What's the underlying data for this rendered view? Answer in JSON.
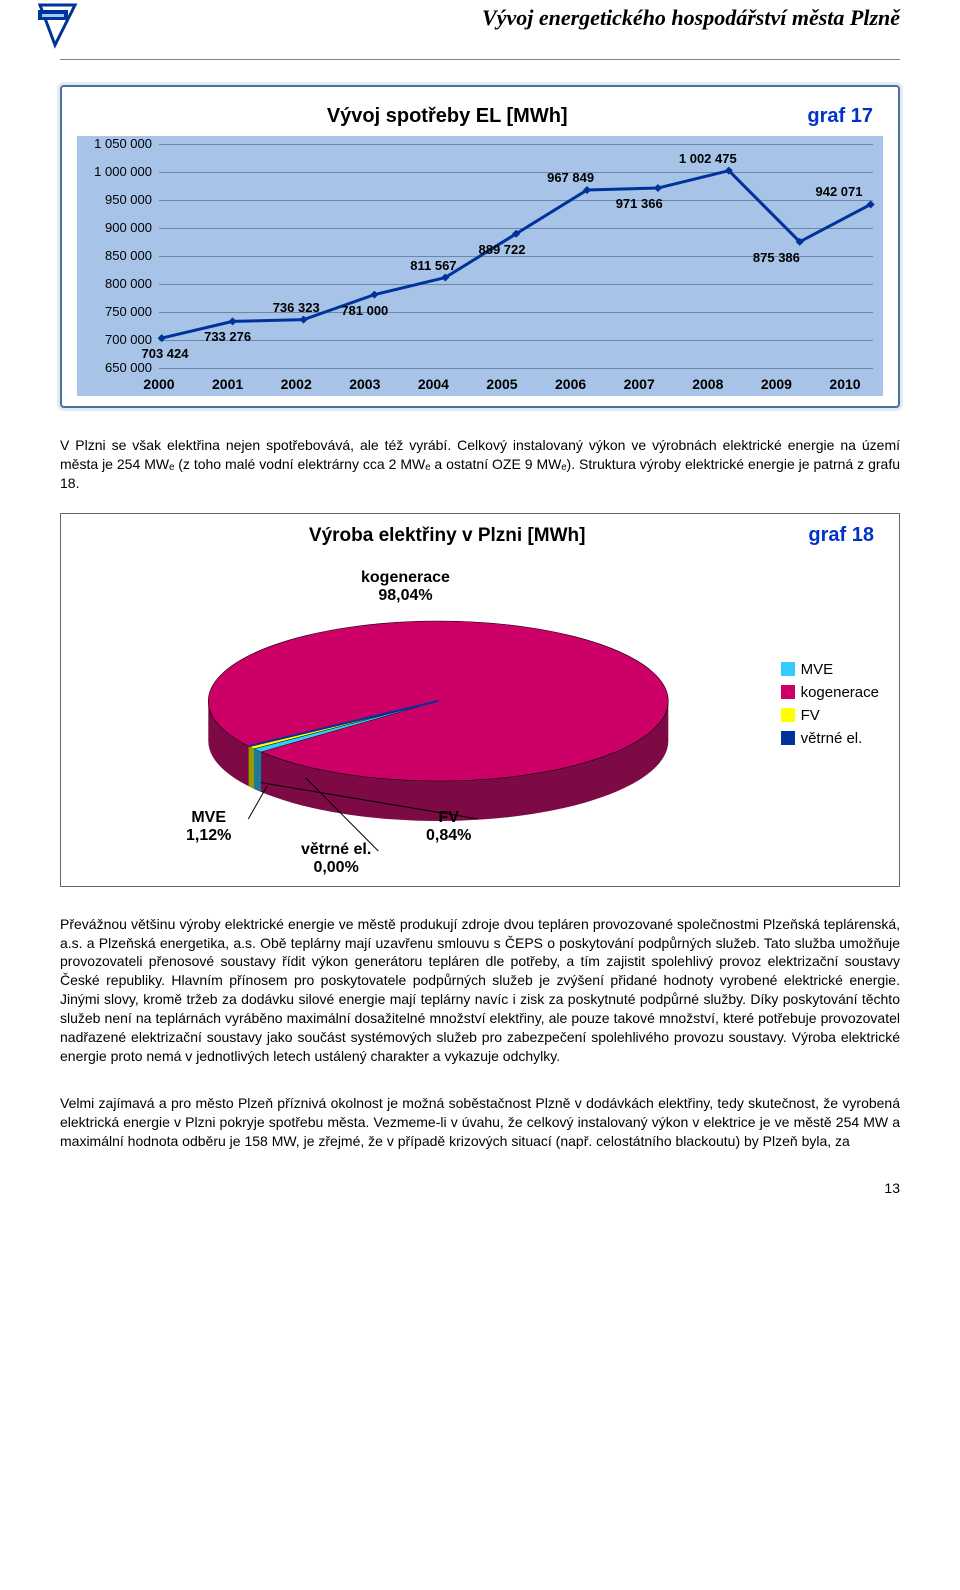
{
  "header": {
    "title": "Vývoj energetického hospodářství města Plzně"
  },
  "line_chart": {
    "type": "line",
    "title": "Vývoj spotřeby EL [MWh]",
    "tag": "graf 17",
    "background_color": "#a7c3e8",
    "line_color": "#003399",
    "line_width": 3,
    "marker": "diamond",
    "marker_color": "#003399",
    "marker_size": 8,
    "title_fontsize": 20,
    "label_fontsize": 13,
    "xtick_fontsize": 14,
    "xtick_fontweight": "bold",
    "ylim": [
      650000,
      1050000
    ],
    "ytick_step": 50000,
    "yticks": [
      "1 050 000",
      "1 000 000",
      "950 000",
      "900 000",
      "850 000",
      "800 000",
      "750 000",
      "700 000",
      "650 000"
    ],
    "categories": [
      "2000",
      "2001",
      "2002",
      "2003",
      "2004",
      "2005",
      "2006",
      "2007",
      "2008",
      "2009",
      "2010"
    ],
    "values": [
      703424,
      733276,
      736323,
      781000,
      811567,
      889722,
      967849,
      971366,
      1002475,
      875386,
      942071
    ],
    "value_labels": [
      "703 424",
      "733 276",
      "736 323",
      "781 000",
      "811 567",
      "889 722",
      "967 849",
      "971 366",
      "1 002 475",
      "875 386",
      "942 071"
    ],
    "grid_color": "#6d87aa"
  },
  "text1": "V Plzni se však elektřina nejen spotřebovává, ale též vyrábí. Celkový instalovaný výkon ve výrobnách elektrické energie na území města je 254 MWₑ (z toho malé vodní elektrárny cca 2 MWₑ a ostatní OZE 9 MWₑ). Struktura výroby elektrické energie je patrná z grafu 18.",
  "pie_chart": {
    "type": "pie-3d",
    "title": "Výroba elektřiny v Plzni [MWh]",
    "tag": "graf 18",
    "title_fontsize": 19,
    "label_fontsize": 16,
    "slices": [
      {
        "name": "MVE",
        "value": 1.12,
        "label": "MVE\n1,12%",
        "color": "#33ccff"
      },
      {
        "name": "kogenerace",
        "value": 98.04,
        "label": "kogenerace\n98,04%",
        "color": "#cc0066"
      },
      {
        "name": "FV",
        "value": 0.84,
        "label": "FV\n0,84%",
        "color": "#ffff00"
      },
      {
        "name": "větrné el.",
        "value": 0.0,
        "label": "větrné el.\n0,00%",
        "color": "#003399"
      }
    ],
    "legend_items": [
      {
        "label": "MVE",
        "color": "#33ccff"
      },
      {
        "label": "kogenerace",
        "color": "#cc0066"
      },
      {
        "label": "FV",
        "color": "#ffff00"
      },
      {
        "label": "větrné el.",
        "color": "#003399"
      }
    ],
    "top_label": "kogenerace\n98,04%",
    "left_label": "MVE\n1,12%",
    "mid_label": "větrné el.\n0,00%",
    "right_label": "FV\n0,84%"
  },
  "text2": "Převážnou většinu výroby elektrické energie ve městě produkují zdroje dvou tepláren provozované společnostmi Plzeňská teplárenská, a.s. a Plzeňská energetika, a.s. Obě teplárny mají uzavřenu smlouvu s ČEPS o poskytování podpůrných služeb. Tato služba umožňuje provozovateli přenosové soustavy řídit výkon generátoru tepláren dle potřeby, a tím zajistit spolehlivý provoz elektrizační soustavy České republiky. Hlavním přínosem pro poskytovatele podpůrných služeb je zvýšení přidané hodnoty vyrobené elektrické energie. Jinými slovy, kromě tržeb za dodávku silové energie mají teplárny navíc i zisk za poskytnuté podpůrné služby. Díky poskytování těchto služeb není na teplárnách vyráběno maximální dosažitelné množství elektřiny, ale pouze takové množství, které potřebuje provozovatel nadřazené elektrizační soustavy jako součást systémových služeb pro zabezpečení spolehlivého provozu soustavy. Výroba elektrické energie proto nemá v jednotlivých letech ustálený charakter a vykazuje odchylky.",
  "text3": "Velmi zajímavá a pro město Plzeň příznivá okolnost je možná soběstačnost Plzně v dodávkách elektřiny, tedy skutečnost, že vyrobená elektrická energie v Plzni pokryje spotřebu města. Vezmeme-li v úvahu, že celkový instalovaný výkon v elektrice je ve městě 254 MW a maximální hodnota odběru je 158 MW, je zřejmé, že v případě krizových situací (např. celostátního blackoutu) by Plzeň byla, za",
  "page_number": "13"
}
